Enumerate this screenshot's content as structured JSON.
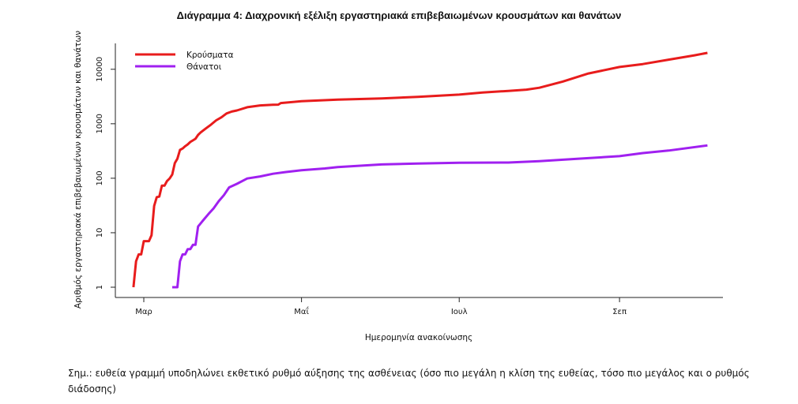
{
  "chart_data": {
    "type": "line",
    "title": "Διάγραμμα 4: Διαχρονική εξέλιξη εργαστηριακά επιβεβαιωμένων κρουσμάτων και θανάτων",
    "xlabel": "Ημερομηνία ανακοίνωσης",
    "ylabel": "Αριθμός εργαστηριακά επιβεβαιωμένων κρουσμάτων και θανάτων",
    "y_scale": "log",
    "ylim": [
      1,
      20000
    ],
    "xlim": [
      "2020-02-19",
      "2020-10-11"
    ],
    "x_ticks": [
      {
        "date": "2020-03-01",
        "label": "Μαρ"
      },
      {
        "date": "2020-05-01",
        "label": "Μαΐ"
      },
      {
        "date": "2020-07-01",
        "label": "Ιουλ"
      },
      {
        "date": "2020-09-01",
        "label": "Σεπ"
      }
    ],
    "y_ticks": [
      {
        "value": 1,
        "label": "1"
      },
      {
        "value": 10,
        "label": "10"
      },
      {
        "value": 100,
        "label": "100"
      },
      {
        "value": 1000,
        "label": "1000"
      },
      {
        "value": 10000,
        "label": "10000"
      }
    ],
    "grid": false,
    "legend": "top-left",
    "series": [
      {
        "name": "Κρούσματα",
        "color": "#e81c1c",
        "points": [
          [
            "2020-02-26",
            1
          ],
          [
            "2020-02-27",
            3
          ],
          [
            "2020-02-28",
            4
          ],
          [
            "2020-02-29",
            4
          ],
          [
            "2020-03-01",
            7
          ],
          [
            "2020-03-03",
            7
          ],
          [
            "2020-03-04",
            9
          ],
          [
            "2020-03-05",
            31
          ],
          [
            "2020-03-06",
            45
          ],
          [
            "2020-03-07",
            46
          ],
          [
            "2020-03-08",
            73
          ],
          [
            "2020-03-09",
            73
          ],
          [
            "2020-03-10",
            89
          ],
          [
            "2020-03-11",
            99
          ],
          [
            "2020-03-12",
            117
          ],
          [
            "2020-03-13",
            190
          ],
          [
            "2020-03-14",
            228
          ],
          [
            "2020-03-15",
            331
          ],
          [
            "2020-03-16",
            352
          ],
          [
            "2020-03-17",
            387
          ],
          [
            "2020-03-18",
            418
          ],
          [
            "2020-03-19",
            464
          ],
          [
            "2020-03-20",
            495
          ],
          [
            "2020-03-21",
            530
          ],
          [
            "2020-03-22",
            624
          ],
          [
            "2020-03-23",
            695
          ],
          [
            "2020-03-25",
            821
          ],
          [
            "2020-03-27",
            966
          ],
          [
            "2020-03-29",
            1156
          ],
          [
            "2020-03-31",
            1314
          ],
          [
            "2020-04-02",
            1544
          ],
          [
            "2020-04-04",
            1673
          ],
          [
            "2020-04-06",
            1755
          ],
          [
            "2020-04-10",
            2011
          ],
          [
            "2020-04-15",
            2170
          ],
          [
            "2020-04-20",
            2235
          ],
          [
            "2020-04-22",
            2245
          ],
          [
            "2020-04-23",
            2401
          ],
          [
            "2020-05-01",
            2591
          ],
          [
            "2020-05-15",
            2770
          ],
          [
            "2020-06-01",
            2918
          ],
          [
            "2020-06-15",
            3121
          ],
          [
            "2020-07-01",
            3432
          ],
          [
            "2020-07-10",
            3732
          ],
          [
            "2020-07-20",
            4007
          ],
          [
            "2020-07-27",
            4227
          ],
          [
            "2020-08-01",
            4587
          ],
          [
            "2020-08-10",
            5942
          ],
          [
            "2020-08-20",
            8381
          ],
          [
            "2020-09-01",
            10998
          ],
          [
            "2020-09-10",
            12452
          ],
          [
            "2020-09-20",
            15000
          ],
          [
            "2020-09-30",
            18035
          ],
          [
            "2020-10-05",
            20000
          ]
        ]
      },
      {
        "name": "Θάνατοι",
        "color": "#a020f0",
        "points": [
          [
            "2020-03-12",
            1
          ],
          [
            "2020-03-14",
            1
          ],
          [
            "2020-03-15",
            3
          ],
          [
            "2020-03-16",
            4
          ],
          [
            "2020-03-17",
            4
          ],
          [
            "2020-03-18",
            5
          ],
          [
            "2020-03-19",
            5
          ],
          [
            "2020-03-20",
            6
          ],
          [
            "2020-03-21",
            6
          ],
          [
            "2020-03-22",
            13
          ],
          [
            "2020-03-24",
            17
          ],
          [
            "2020-03-26",
            22
          ],
          [
            "2020-03-28",
            28
          ],
          [
            "2020-03-30",
            38
          ],
          [
            "2020-04-01",
            49
          ],
          [
            "2020-04-03",
            68
          ],
          [
            "2020-04-06",
            79
          ],
          [
            "2020-04-10",
            99
          ],
          [
            "2020-04-15",
            108
          ],
          [
            "2020-04-20",
            121
          ],
          [
            "2020-04-25",
            130
          ],
          [
            "2020-05-01",
            140
          ],
          [
            "2020-05-10",
            151
          ],
          [
            "2020-05-15",
            160
          ],
          [
            "2020-06-01",
            179
          ],
          [
            "2020-06-15",
            186
          ],
          [
            "2020-07-01",
            192
          ],
          [
            "2020-07-20",
            194
          ],
          [
            "2020-08-01",
            206
          ],
          [
            "2020-08-15",
            226
          ],
          [
            "2020-09-01",
            254
          ],
          [
            "2020-09-10",
            290
          ],
          [
            "2020-09-20",
            322
          ],
          [
            "2020-10-05",
            400
          ]
        ]
      }
    ]
  },
  "note": "Σημ.: ευθεία γραμμή υποδηλώνει εκθετικό ρυθμό αύξησης της ασθένειας (όσο πιο μεγάλη η κλίση της ευθείας, τόσο πιο μεγάλος και ο ρυθμός διάδοσης)"
}
